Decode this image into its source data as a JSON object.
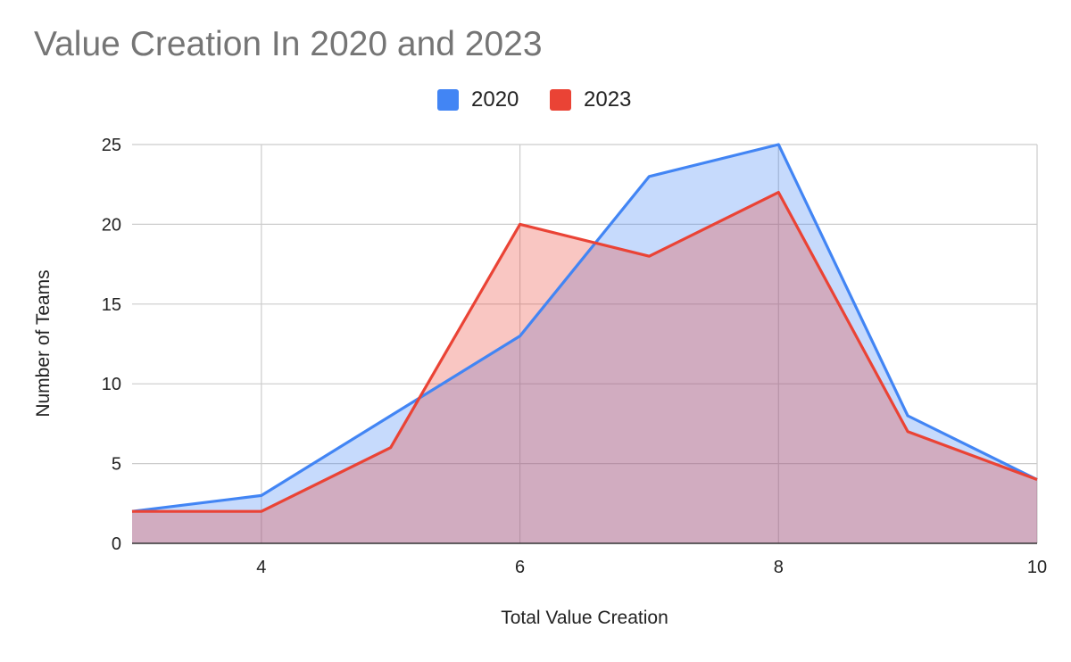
{
  "chart_data": {
    "type": "area",
    "title": "Value Creation In 2020 and 2023",
    "xlabel": "Total Value Creation",
    "ylabel": "Number of Teams",
    "x": [
      3,
      4,
      5,
      6,
      7,
      8,
      9,
      10
    ],
    "series": [
      {
        "name": "2020",
        "color": "#4285F4",
        "values": [
          2,
          3,
          8,
          13,
          23,
          25,
          8,
          4
        ]
      },
      {
        "name": "2023",
        "color": "#EA4335",
        "values": [
          2,
          2,
          6,
          20,
          18,
          22,
          7,
          4
        ]
      }
    ],
    "xlim": [
      3,
      10
    ],
    "ylim": [
      0,
      25
    ],
    "xticks": [
      4,
      6,
      8,
      10
    ],
    "yticks": [
      0,
      5,
      10,
      15,
      20,
      25
    ],
    "grid": true,
    "legend_position": "top"
  }
}
